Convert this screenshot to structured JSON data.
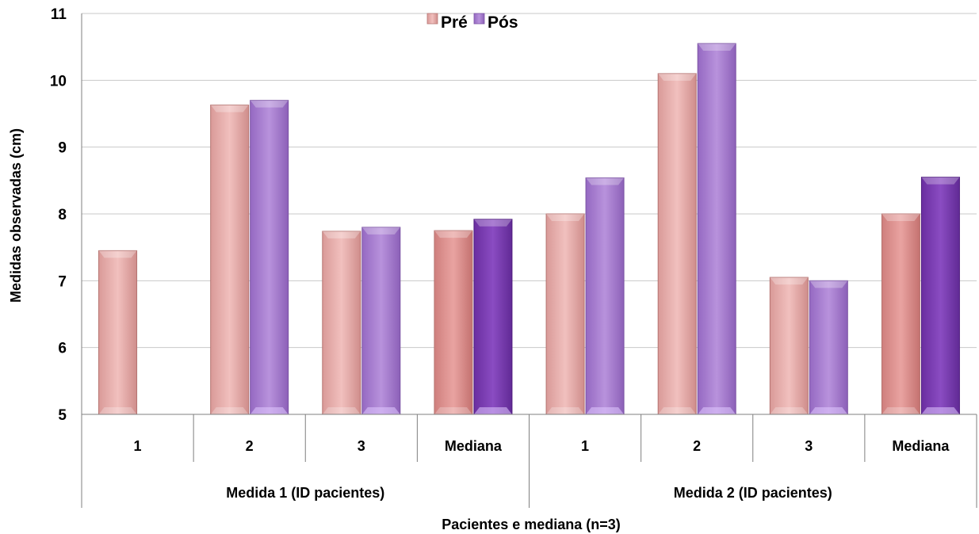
{
  "chart_data": {
    "type": "bar",
    "title": "",
    "xlabel": "Pacientes e mediana (n=3)",
    "ylabel": "Medidas observadas (cm)",
    "ylim": [
      5,
      11
    ],
    "yticks": [
      "5",
      "6",
      "7",
      "8",
      "9",
      "10",
      "11"
    ],
    "grid": true,
    "legend_position": "top-center",
    "groups": [
      {
        "label": "Medida 1 (ID pacientes)",
        "categories": [
          "1",
          "2",
          "3",
          "Mediana"
        ]
      },
      {
        "label": "Medida 2 (ID pacientes)",
        "categories": [
          "1",
          "2",
          "3",
          "Mediana"
        ]
      }
    ],
    "series": [
      {
        "name": "Pré",
        "color": "#e8aaa8",
        "median_color": "#e08e8c",
        "values": [
          7.45,
          9.63,
          7.74,
          7.75,
          8.0,
          10.1,
          7.05,
          8.0
        ]
      },
      {
        "name": "Pós",
        "color": "#a97fd0",
        "median_color": "#7b3fb0",
        "values": [
          null,
          9.7,
          7.8,
          7.92,
          8.54,
          10.55,
          7.0,
          8.55
        ]
      }
    ]
  }
}
